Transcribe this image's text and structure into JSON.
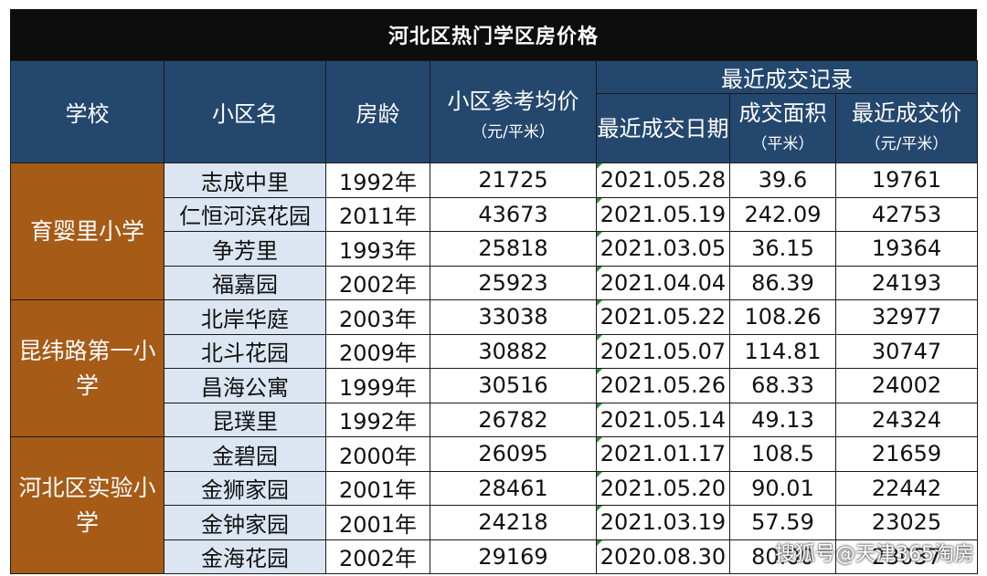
{
  "title": "河北区热门学区房价格",
  "headers": {
    "school": "学校",
    "community": "小区名",
    "age": "房龄",
    "avg_price": "小区参考均价",
    "avg_price_unit": "（元/平米）",
    "recent_group": "最近成交记录",
    "recent_date": "最近成交日期",
    "area": "成交面积",
    "area_unit": "（平米）",
    "recent_price": "最近成交价",
    "recent_price_unit": "（元/平米）"
  },
  "schools": [
    "育婴里小学",
    "昆纬路第一小学",
    "河北区实验小学"
  ],
  "rows": [
    {
      "name": "志成中里",
      "age": "1992年",
      "avg": "21725",
      "date": "2021.05.28",
      "area": "39.6",
      "price": "19761"
    },
    {
      "name": "仁恒河滨花园",
      "age": "2011年",
      "avg": "43673",
      "date": "2021.05.19",
      "area": "242.09",
      "price": "42753"
    },
    {
      "name": "争芳里",
      "age": "1993年",
      "avg": "25818",
      "date": "2021.03.05",
      "area": "36.15",
      "price": "19364"
    },
    {
      "name": "福嘉园",
      "age": "2002年",
      "avg": "25923",
      "date": "2021.04.04",
      "area": "86.39",
      "price": "24193"
    },
    {
      "name": "北岸华庭",
      "age": "2003年",
      "avg": "33038",
      "date": "2021.05.22",
      "area": "108.26",
      "price": "32977"
    },
    {
      "name": "北斗花园",
      "age": "2009年",
      "avg": "30882",
      "date": "2021.05.07",
      "area": "114.81",
      "price": "30747"
    },
    {
      "name": "昌海公寓",
      "age": "1999年",
      "avg": "30516",
      "date": "2021.05.26",
      "area": "68.33",
      "price": "24002"
    },
    {
      "name": "昆璞里",
      "age": "1992年",
      "avg": "26782",
      "date": "2021.05.14",
      "area": "49.13",
      "price": "24324"
    },
    {
      "name": "金碧园",
      "age": "2000年",
      "avg": "26095",
      "date": "2021.01.17",
      "area": "108.5",
      "price": "21659"
    },
    {
      "name": "金狮家园",
      "age": "2001年",
      "avg": "28461",
      "date": "2021.05.20",
      "area": "90.01",
      "price": "22442"
    },
    {
      "name": "金钟家园",
      "age": "2001年",
      "avg": "24218",
      "date": "2021.03.19",
      "area": "57.59",
      "price": "23025"
    },
    {
      "name": "金海花园",
      "age": "2002年",
      "avg": "29169",
      "date": "2020.08.30",
      "area": "80.00",
      "price": "23037"
    }
  ],
  "watermark": "搜狐号@天津365淘房",
  "colors": {
    "title_bg": "#0d0d0d",
    "header_bg": "#24476e",
    "school_bg": "#a65b17",
    "community_bg": "#dce6f2"
  }
}
